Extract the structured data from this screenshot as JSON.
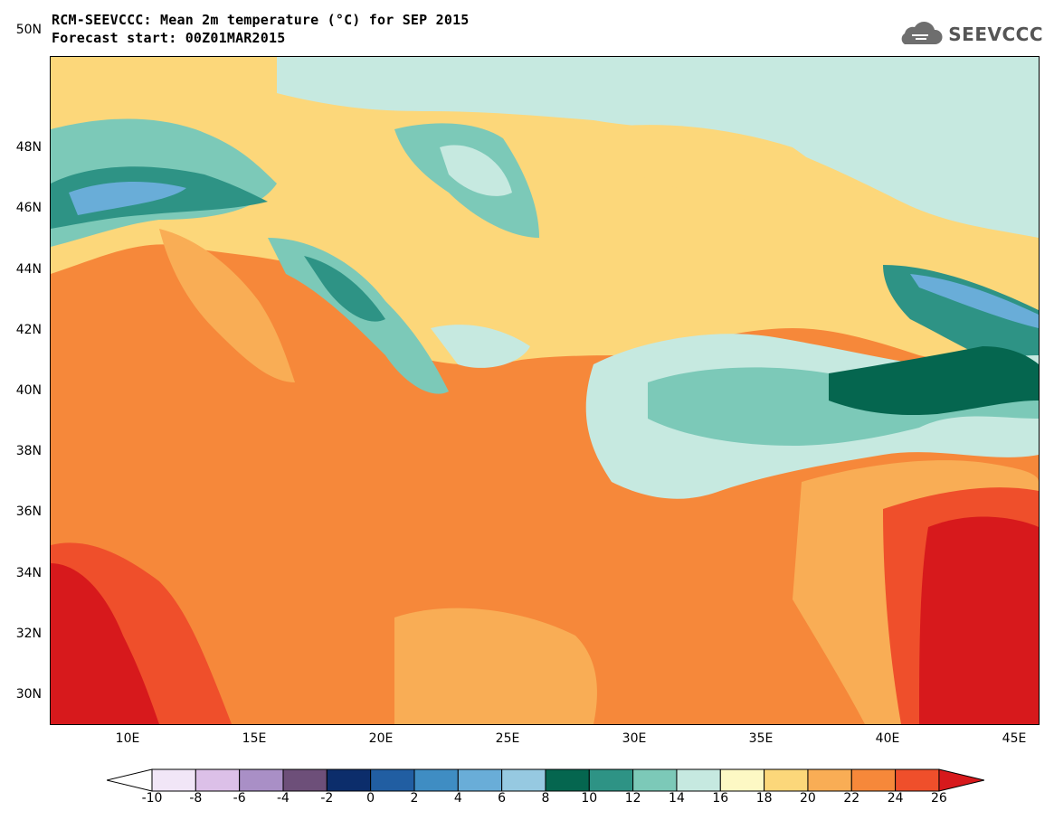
{
  "title": {
    "line1": "RCM-SEEVCCC: Mean 2m temperature (°C) for SEP 2015",
    "line2": "Forecast start: 00Z01MAR2015"
  },
  "logo": {
    "text": "SEEVCCC",
    "icon": "cloud-logo-icon"
  },
  "axes": {
    "lat_ticks": [
      "50N",
      "48N",
      "46N",
      "44N",
      "42N",
      "40N",
      "38N",
      "36N",
      "34N",
      "32N",
      "30N"
    ],
    "lon_ticks": [
      "10E",
      "15E",
      "20E",
      "25E",
      "30E",
      "35E",
      "40E",
      "45E"
    ]
  },
  "colorbar": {
    "labels": [
      "-10",
      "-8",
      "-6",
      "-4",
      "-2",
      "0",
      "2",
      "4",
      "6",
      "8",
      "10",
      "12",
      "14",
      "16",
      "18",
      "20",
      "22",
      "24",
      "26"
    ],
    "colors": [
      "#f1e6f7",
      "#dcc0e8",
      "#a98fc6",
      "#6d4f79",
      "#0c2d6b",
      "#215ea2",
      "#3f8dc3",
      "#69add8",
      "#96c9e1",
      "#05664f",
      "#2e9385",
      "#7cc9b8",
      "#c6e9e0",
      "#fdf8c4",
      "#fcd77a",
      "#f9ad55",
      "#f6883a",
      "#ef4f2b"
    ],
    "under_color": "#ffffff",
    "over_color": "#d7191c"
  },
  "chart_data": {
    "type": "heatmap",
    "variable": "Mean 2m temperature (°C)",
    "period": "SEP 2015",
    "forecast_start": "00Z01MAR2015",
    "lon_range": [
      7,
      46
    ],
    "lat_range": [
      29,
      51
    ],
    "levels": [
      -10,
      -8,
      -6,
      -4,
      -2,
      0,
      2,
      4,
      6,
      8,
      10,
      12,
      14,
      16,
      18,
      20,
      22,
      24,
      26
    ]
  }
}
